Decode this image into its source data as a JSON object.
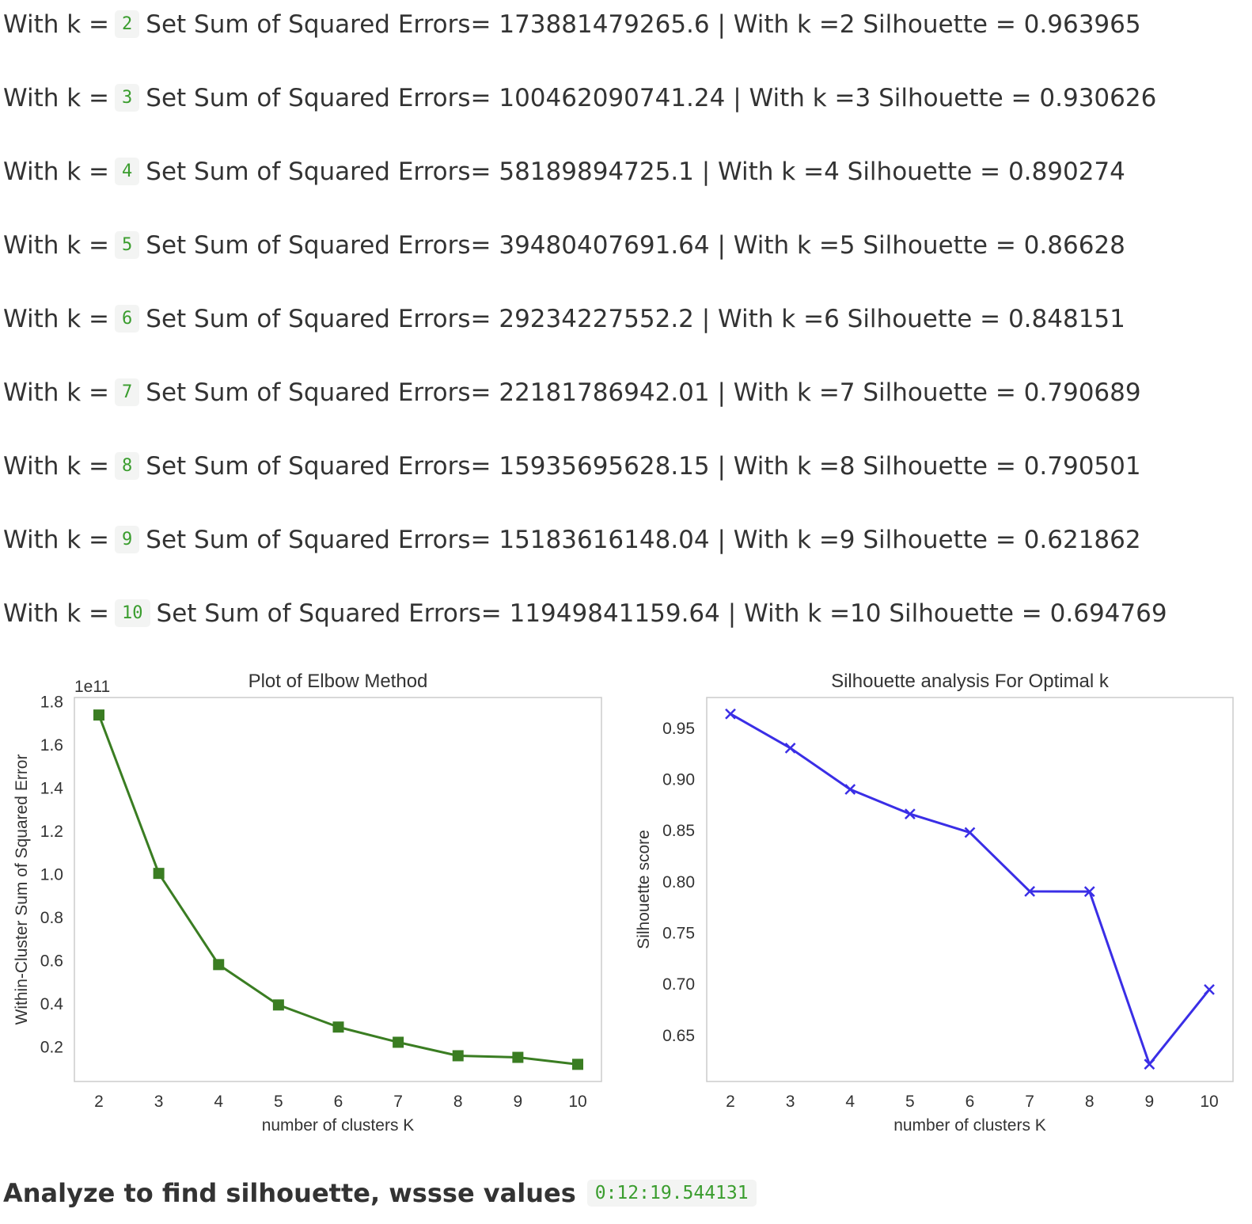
{
  "results": [
    {
      "prefix": "With k =",
      "k": "2",
      "sse_text": "Set Sum of Squared Errors= 173881479265.6 | With k =2 Silhouette = 0.963965"
    },
    {
      "prefix": "With k =",
      "k": "3",
      "sse_text": "Set Sum of Squared Errors= 100462090741.24 | With k =3 Silhouette = 0.930626"
    },
    {
      "prefix": "With k =",
      "k": "4",
      "sse_text": "Set Sum of Squared Errors= 58189894725.1 | With k =4 Silhouette = 0.890274"
    },
    {
      "prefix": "With k =",
      "k": "5",
      "sse_text": "Set Sum of Squared Errors= 39480407691.64 | With k =5 Silhouette = 0.86628"
    },
    {
      "prefix": "With k =",
      "k": "6",
      "sse_text": "Set Sum of Squared Errors= 29234227552.2 | With k =6 Silhouette = 0.848151"
    },
    {
      "prefix": "With k =",
      "k": "7",
      "sse_text": "Set Sum of Squared Errors= 22181786942.01 | With k =7 Silhouette = 0.790689"
    },
    {
      "prefix": "With k =",
      "k": "8",
      "sse_text": "Set Sum of Squared Errors= 15935695628.15 | With k =8 Silhouette = 0.790501"
    },
    {
      "prefix": "With k =",
      "k": "9",
      "sse_text": "Set Sum of Squared Errors= 15183616148.04 | With k =9 Silhouette = 0.621862"
    },
    {
      "prefix": "With k =",
      "k": "10",
      "sse_text": "Set Sum of Squared Errors= 11949841159.64 | With k =10 Silhouette = 0.694769"
    }
  ],
  "chart_data": [
    {
      "type": "line",
      "title": "Plot of Elbow Method",
      "xlabel": "number of clusters K",
      "ylabel": "Within-Cluster Sum of Squared Error",
      "offset_label": "1e11",
      "x": [
        2,
        3,
        4,
        5,
        6,
        7,
        8,
        9,
        10
      ],
      "y": [
        1.738815,
        1.004621,
        0.581899,
        0.394804,
        0.292342,
        0.221818,
        0.159357,
        0.151836,
        0.119498
      ],
      "xticks": [
        "2",
        "3",
        "4",
        "5",
        "6",
        "7",
        "8",
        "9",
        "10"
      ],
      "yticks": [
        "0.2",
        "0.4",
        "0.6",
        "0.8",
        "1.0",
        "1.2",
        "1.4",
        "1.6",
        "1.8"
      ],
      "ylim": [
        0.04,
        1.82
      ],
      "marker": "square",
      "color": "#3a7d22",
      "grid": false
    },
    {
      "type": "line",
      "title": "Silhouette analysis For Optimal k",
      "xlabel": "number of clusters K",
      "ylabel": "Silhouette score",
      "x": [
        2,
        3,
        4,
        5,
        6,
        7,
        8,
        9,
        10
      ],
      "y": [
        0.963965,
        0.930626,
        0.890274,
        0.86628,
        0.848151,
        0.790689,
        0.790501,
        0.621862,
        0.694769
      ],
      "xticks": [
        "2",
        "3",
        "4",
        "5",
        "6",
        "7",
        "8",
        "9",
        "10"
      ],
      "yticks": [
        "0.65",
        "0.70",
        "0.75",
        "0.80",
        "0.85",
        "0.90",
        "0.95"
      ],
      "ylim": [
        0.605,
        0.98
      ],
      "marker": "x",
      "color": "#3a2ee6",
      "grid": false
    }
  ],
  "footer": {
    "title": "Analyze to find silhouette, wssse values",
    "time": "0:12:19.544131"
  }
}
